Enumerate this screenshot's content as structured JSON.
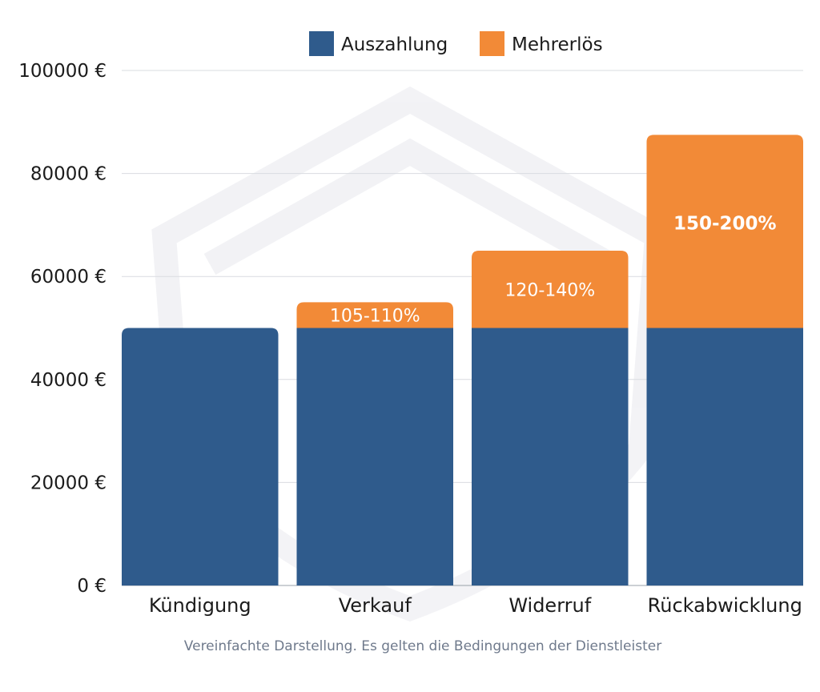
{
  "chart_data": {
    "type": "bar",
    "stacked": true,
    "categories": [
      "Kündigung",
      "Verkauf",
      "Widerruf",
      "Rückabwicklung"
    ],
    "series": [
      {
        "name": "Auszahlung",
        "color": "#2f5b8c",
        "values": [
          50000,
          50000,
          50000,
          50000
        ]
      },
      {
        "name": "Mehrerlös",
        "color": "#f28a37",
        "values": [
          0,
          5000,
          15000,
          37500
        ]
      }
    ],
    "segment_labels": [
      "",
      "105-110%",
      "120-140%",
      "150-200%"
    ],
    "y_ticks": [
      "0 €",
      "20000 €",
      "40000 €",
      "60000 €",
      "80000 €",
      "100000 €"
    ],
    "ylim": [
      0,
      100000
    ],
    "grid": true,
    "legend_position": "top-center",
    "footnote": "Vereinfachte Darstellung. Es gelten die Bedingungen der Dienstleister"
  }
}
